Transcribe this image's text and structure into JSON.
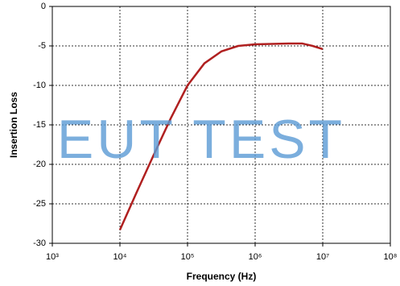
{
  "chart_data": {
    "type": "line",
    "x_label": "Frequency (Hz)",
    "y_label": "Insertion Loss",
    "watermark": "EUT TEST",
    "x_scale": "log",
    "grid": true,
    "x": [
      10000,
      17783,
      31623,
      56234,
      100000,
      177828,
      316228,
      562341,
      1000000,
      3162278,
      5011872,
      7079458,
      10000000
    ],
    "series": [
      {
        "color": "#b02020",
        "values": [
          -28.3,
          -23.5,
          -18.8,
          -14.2,
          -10,
          -7.2,
          -5.7,
          -5.0,
          -4.8,
          -4.7,
          -4.7,
          -5.0,
          -5.4
        ]
      }
    ],
    "xlim": [
      1000,
      100000000
    ],
    "xticks": [
      {
        "value": 1000,
        "label": "10³"
      },
      {
        "value": 10000,
        "label": "10⁴"
      },
      {
        "value": 100000,
        "label": "10⁵"
      },
      {
        "value": 1000000,
        "label": "10⁶"
      },
      {
        "value": 10000000,
        "label": "10⁷"
      },
      {
        "value": 100000000,
        "label": "10⁸"
      }
    ],
    "ylim": [
      -30,
      0
    ],
    "yticks": [
      -30,
      -25,
      -20,
      -15,
      -10,
      -5,
      0
    ]
  }
}
